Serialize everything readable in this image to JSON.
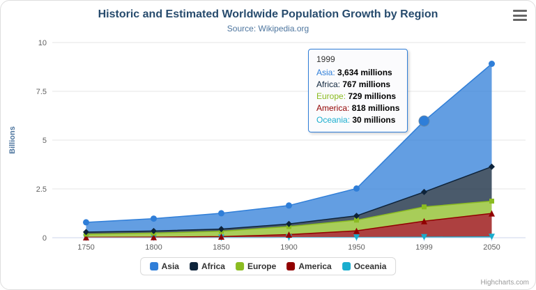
{
  "header": {
    "title": "Historic and Estimated Worldwide Population Growth by Region",
    "subtitle": "Source: Wikipedia.org"
  },
  "chart_data": {
    "type": "area",
    "stacking": "normal",
    "unit": "millions",
    "title": "Historic and Estimated Worldwide Population Growth by Region",
    "subtitle": "Source: Wikipedia.org",
    "ylabel": "Billions",
    "ylim": [
      0,
      10
    ],
    "yticks": [
      0,
      2.5,
      5,
      7.5,
      10
    ],
    "grid": true,
    "legend_position": "bottom",
    "categories": [
      "1750",
      "1800",
      "1850",
      "1900",
      "1950",
      "1999",
      "2050"
    ],
    "series": [
      {
        "name": "Asia",
        "color": "#2f7ed8",
        "marker": "circle",
        "values_millions": [
          502,
          635,
          809,
          947,
          1402,
          3634,
          5268
        ]
      },
      {
        "name": "Africa",
        "color": "#0d233a",
        "marker": "diamond",
        "values_millions": [
          106,
          107,
          111,
          133,
          221,
          767,
          1766
        ]
      },
      {
        "name": "Europe",
        "color": "#8bbc21",
        "marker": "square",
        "values_millions": [
          163,
          203,
          276,
          408,
          547,
          729,
          628
        ]
      },
      {
        "name": "America",
        "color": "#910000",
        "marker": "triangle",
        "values_millions": [
          18,
          31,
          54,
          156,
          339,
          818,
          1201
        ]
      },
      {
        "name": "Oceania",
        "color": "#1aadce",
        "marker": "triangle-down",
        "values_millions": [
          2,
          2,
          2,
          6,
          13,
          30,
          46
        ]
      }
    ],
    "hovered_point": {
      "category": "1999",
      "series": "Asia"
    }
  },
  "tooltip": {
    "header": "1999",
    "rows": [
      {
        "name": "Asia",
        "value": "3,634",
        "unit": "millions",
        "color": "#2f7ed8"
      },
      {
        "name": "Africa",
        "value": "767",
        "unit": "millions",
        "color": "#0d233a"
      },
      {
        "name": "Europe",
        "value": "729",
        "unit": "millions",
        "color": "#8bbc21"
      },
      {
        "name": "America",
        "value": "818",
        "unit": "millions",
        "color": "#910000"
      },
      {
        "name": "Oceania",
        "value": "30",
        "unit": "millions",
        "color": "#1aadce"
      }
    ]
  },
  "credits": "Highcharts.com"
}
